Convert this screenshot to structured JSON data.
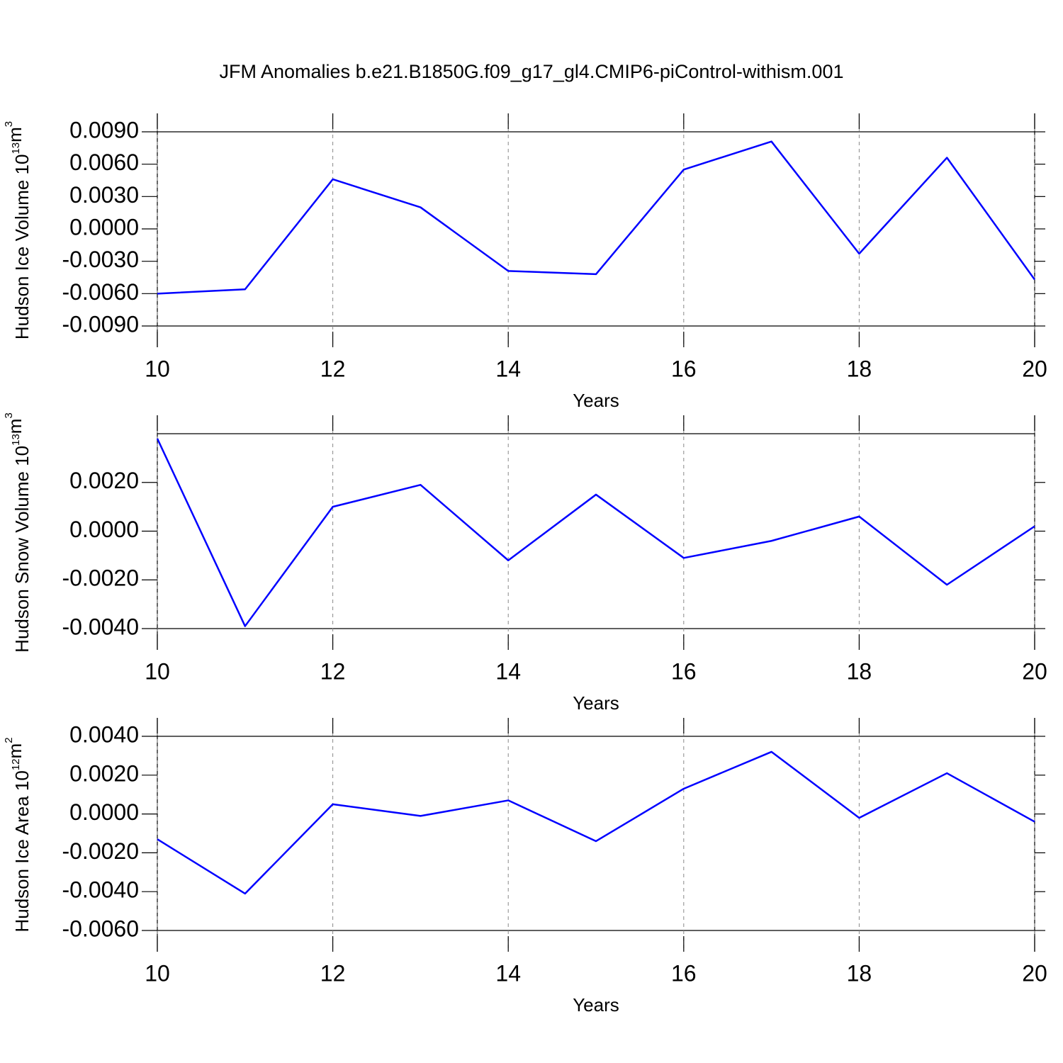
{
  "title": "JFM Anomalies b.e21.B1850G.f09_g17_gl4.CMIP6-piControl-withism.001",
  "chart_data": [
    {
      "type": "line",
      "xlabel": "Years",
      "ylabel": {
        "text": "Hudson Ice Volume 10",
        "exp": "13",
        "unit": "m",
        "unit_exp": "3"
      },
      "x": [
        10,
        11,
        12,
        13,
        14,
        15,
        16,
        17,
        18,
        19,
        20
      ],
      "values": [
        -0.006,
        -0.0056,
        0.0046,
        0.002,
        -0.0039,
        -0.0042,
        0.0055,
        0.0081,
        -0.0023,
        0.0066,
        -0.0047
      ],
      "color": "#0000ff",
      "xlim": [
        10,
        20
      ],
      "xticks": [
        10,
        12,
        14,
        16,
        18,
        20
      ],
      "ylim": [
        -0.009,
        0.009
      ],
      "yticks": [
        {
          "value": -0.009,
          "label": "-0.0090"
        },
        {
          "value": -0.006,
          "label": "-0.0060"
        },
        {
          "value": -0.003,
          "label": "-0.0030"
        },
        {
          "value": 0,
          "label": "0.0000"
        },
        {
          "value": 0.003,
          "label": "0.0030"
        },
        {
          "value": 0.006,
          "label": "0.0060"
        },
        {
          "value": 0.009,
          "label": "0.0090"
        }
      ],
      "grid": true
    },
    {
      "type": "line",
      "xlabel": "Years",
      "ylabel": {
        "text": "Hudson Snow Volume 10",
        "exp": "13",
        "unit": "m",
        "unit_exp": "3"
      },
      "x": [
        10,
        11,
        12,
        13,
        14,
        15,
        16,
        17,
        18,
        19,
        20
      ],
      "values": [
        0.0038,
        -0.0039,
        0.001,
        0.0019,
        -0.0012,
        0.0015,
        -0.0011,
        -0.0004,
        0.0006,
        -0.0022,
        0.0002
      ],
      "color": "#0000ff",
      "xlim": [
        10,
        20
      ],
      "xticks": [
        10,
        12,
        14,
        16,
        18,
        20
      ],
      "ylim": [
        -0.004,
        0.004
      ],
      "yticks": [
        {
          "value": -0.004,
          "label": "-0.0040"
        },
        {
          "value": -0.002,
          "label": "-0.0020"
        },
        {
          "value": 0,
          "label": "0.0000"
        },
        {
          "value": 0.002,
          "label": "0.0020"
        }
      ],
      "grid": true
    },
    {
      "type": "line",
      "xlabel": "Years",
      "ylabel": {
        "text": "Hudson Ice Area 10",
        "exp": "12",
        "unit": "m",
        "unit_exp": "2"
      },
      "x": [
        10,
        11,
        12,
        13,
        14,
        15,
        16,
        17,
        18,
        19,
        20
      ],
      "values": [
        -0.0013,
        -0.0041,
        0.0005,
        -0.0001,
        0.0007,
        -0.0014,
        0.0013,
        0.0032,
        -0.0002,
        0.0021,
        -0.0004
      ],
      "color": "#0000ff",
      "xlim": [
        10,
        20
      ],
      "xticks": [
        10,
        12,
        14,
        16,
        18,
        20
      ],
      "ylim": [
        -0.006,
        0.004
      ],
      "yticks": [
        {
          "value": -0.006,
          "label": "-0.0060"
        },
        {
          "value": -0.004,
          "label": "-0.0040"
        },
        {
          "value": -0.002,
          "label": "-0.0020"
        },
        {
          "value": 0,
          "label": "0.0000"
        },
        {
          "value": 0.002,
          "label": "0.0020"
        },
        {
          "value": 0.004,
          "label": "0.0040"
        }
      ],
      "grid": true
    }
  ]
}
